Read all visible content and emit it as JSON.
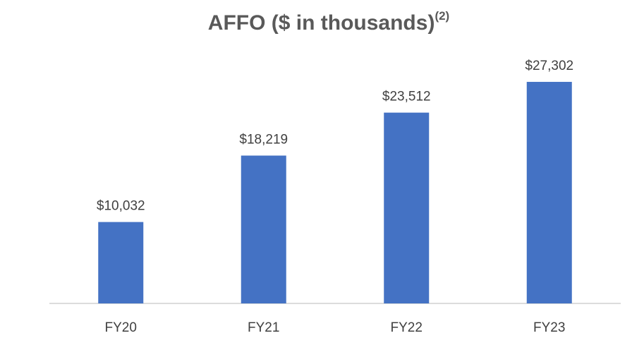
{
  "chart_data": {
    "type": "bar",
    "title": "AFFO ($ in thousands)",
    "title_superscript": "(2)",
    "categories": [
      "FY20",
      "FY21",
      "FY22",
      "FY23"
    ],
    "values": [
      10032,
      18219,
      23512,
      27302
    ],
    "value_labels": [
      "$10,032",
      "$18,219",
      "$23,512",
      "$27,302"
    ],
    "color": "#4472c4",
    "ylim": [
      0,
      30000
    ]
  }
}
